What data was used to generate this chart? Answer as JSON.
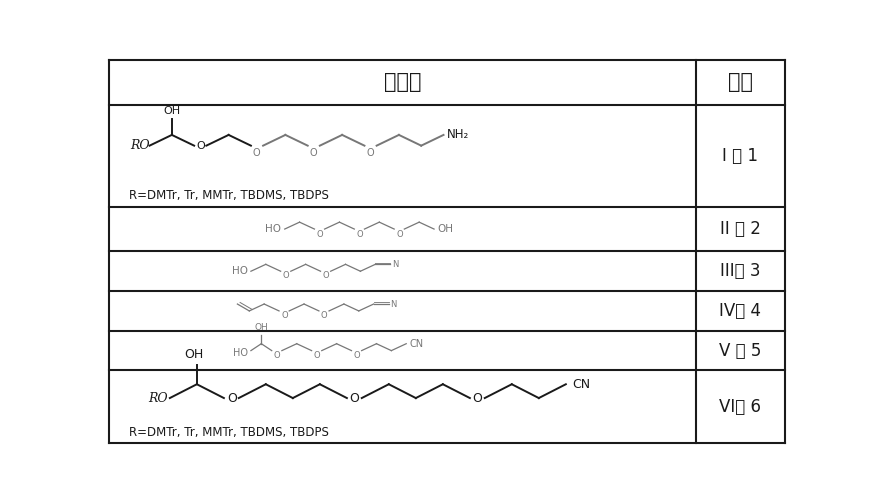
{
  "title_col1": "结构式",
  "title_col2": "编号",
  "ids": [
    "I 或 1",
    "II 或 2",
    "III或 3",
    "IV或 4",
    "V 或 5",
    "VI或 6"
  ],
  "note": "R=DMTr, Tr, MMTr, TBDMS, TBDPS",
  "bg_color": "#ffffff",
  "border_color": "#1a1a1a",
  "text_color": "#1a1a1a",
  "gray_color": "#777777",
  "col_split": 0.868,
  "row_tops": [
    1.0,
    0.882,
    0.617,
    0.5,
    0.397,
    0.293,
    0.19
  ],
  "row_bottoms": [
    0.882,
    0.617,
    0.5,
    0.397,
    0.293,
    0.19,
    0.0
  ],
  "fig_width": 8.72,
  "fig_height": 4.98,
  "lw_border": 1.5
}
